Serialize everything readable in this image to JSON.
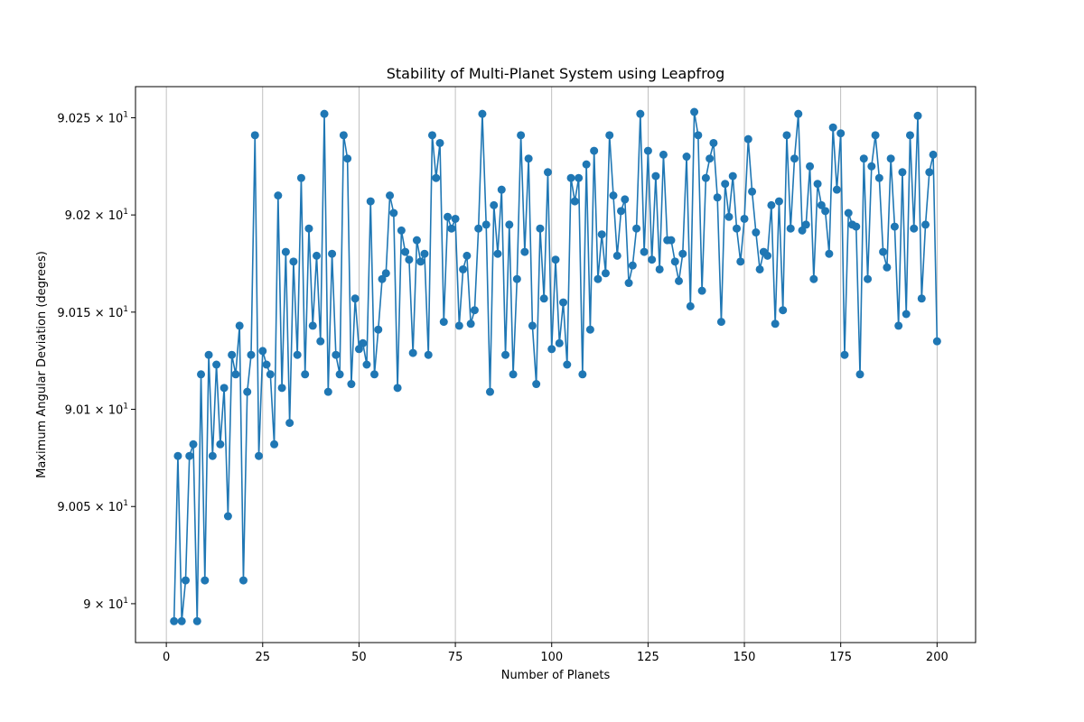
{
  "chart_data": {
    "type": "line",
    "title": "Stability of Multi-Planet System using Leapfrog",
    "xlabel": "Number of Planets",
    "ylabel": "Maximum Angular Deviation (degrees)",
    "xlim": [
      -8,
      210
    ],
    "ylim": [
      89.98,
      90.266
    ],
    "grid": "vertical",
    "color": "#1f77b4",
    "xticks": [
      {
        "value": 0,
        "label": "0"
      },
      {
        "value": 25,
        "label": "25"
      },
      {
        "value": 50,
        "label": "50"
      },
      {
        "value": 75,
        "label": "75"
      },
      {
        "value": 100,
        "label": "100"
      },
      {
        "value": 125,
        "label": "125"
      },
      {
        "value": 150,
        "label": "150"
      },
      {
        "value": 175,
        "label": "175"
      },
      {
        "value": 200,
        "label": "200"
      }
    ],
    "yticks": [
      {
        "value": 90.0,
        "mantissa": "9",
        "exponent": "1"
      },
      {
        "value": 90.05,
        "mantissa": "9.005",
        "exponent": "1"
      },
      {
        "value": 90.1,
        "mantissa": "9.01",
        "exponent": "1"
      },
      {
        "value": 90.15,
        "mantissa": "9.015",
        "exponent": "1"
      },
      {
        "value": 90.2,
        "mantissa": "9.02",
        "exponent": "1"
      },
      {
        "value": 90.25,
        "mantissa": "9.025",
        "exponent": "1"
      }
    ],
    "series": [
      {
        "x": [
          2,
          3,
          4,
          5,
          6,
          7,
          8,
          9,
          10,
          11,
          12,
          13,
          14,
          15,
          16,
          17,
          18,
          19,
          20,
          21,
          22,
          23,
          24,
          25,
          26,
          27,
          28,
          29,
          30,
          31,
          32,
          33,
          34,
          35,
          36,
          37,
          38,
          39,
          40,
          41,
          42,
          43,
          44,
          45,
          46,
          47,
          48,
          49,
          50,
          51,
          52,
          53,
          54,
          55,
          56,
          57,
          58,
          59,
          60,
          61,
          62,
          63,
          64,
          65,
          66,
          67,
          68,
          69,
          70,
          71,
          72,
          73,
          74,
          75,
          76,
          77,
          78,
          79,
          80,
          81,
          82,
          83,
          84,
          85,
          86,
          87,
          88,
          89,
          90,
          91,
          92,
          93,
          94,
          95,
          96,
          97,
          98,
          99,
          100,
          101,
          102,
          103,
          104,
          105,
          106,
          107,
          108,
          109,
          110,
          111,
          112,
          113,
          114,
          115,
          116,
          117,
          118,
          119,
          120,
          121,
          122,
          123,
          124,
          125,
          126,
          127,
          128,
          129,
          130,
          131,
          132,
          133,
          134,
          135,
          136,
          137,
          138,
          139,
          140,
          141,
          142,
          143,
          144,
          145,
          146,
          147,
          148,
          149,
          150,
          151,
          152,
          153,
          154,
          155,
          156,
          157,
          158,
          159,
          160,
          161,
          162,
          163,
          164,
          165,
          166,
          167,
          168,
          169,
          170,
          171,
          172,
          173,
          174,
          175,
          176,
          177,
          178,
          179,
          180,
          181,
          182,
          183,
          184,
          185,
          186,
          187,
          188,
          189,
          190,
          191,
          192,
          193,
          194,
          195,
          196,
          197,
          198,
          199,
          200
        ],
        "y": [
          89.991,
          90.076,
          89.991,
          90.012,
          90.076,
          90.082,
          89.991,
          90.118,
          90.012,
          90.128,
          90.076,
          90.123,
          90.082,
          90.111,
          90.045,
          90.128,
          90.118,
          90.143,
          90.012,
          90.109,
          90.128,
          90.241,
          90.076,
          90.13,
          90.123,
          90.118,
          90.082,
          90.21,
          90.111,
          90.181,
          90.093,
          90.176,
          90.128,
          90.219,
          90.118,
          90.193,
          90.143,
          90.179,
          90.135,
          90.252,
          90.109,
          90.18,
          90.128,
          90.118,
          90.241,
          90.229,
          90.113,
          90.157,
          90.131,
          90.134,
          90.123,
          90.207,
          90.118,
          90.141,
          90.167,
          90.17,
          90.21,
          90.201,
          90.111,
          90.192,
          90.181,
          90.177,
          90.129,
          90.187,
          90.176,
          90.18,
          90.128,
          90.241,
          90.219,
          90.237,
          90.145,
          90.199,
          90.193,
          90.198,
          90.143,
          90.172,
          90.179,
          90.144,
          90.151,
          90.193,
          90.252,
          90.195,
          90.109,
          90.205,
          90.18,
          90.213,
          90.128,
          90.195,
          90.118,
          90.167,
          90.241,
          90.181,
          90.229,
          90.143,
          90.113,
          90.193,
          90.157,
          90.222,
          90.131,
          90.177,
          90.134,
          90.155,
          90.123,
          90.219,
          90.207,
          90.219,
          90.118,
          90.226,
          90.141,
          90.233,
          90.167,
          90.19,
          90.17,
          90.241,
          90.21,
          90.179,
          90.202,
          90.208,
          90.165,
          90.174,
          90.193,
          90.252,
          90.181,
          90.233,
          90.177,
          90.22,
          90.172,
          90.231,
          90.187,
          90.187,
          90.176,
          90.166,
          90.18,
          90.23,
          90.153,
          90.253,
          90.241,
          90.161,
          90.219,
          90.229,
          90.237,
          90.209,
          90.145,
          90.216,
          90.199,
          90.22,
          90.193,
          90.176,
          90.198,
          90.239,
          90.212,
          90.191,
          90.172,
          90.181,
          90.179,
          90.205,
          90.144,
          90.207,
          90.151,
          90.241,
          90.193,
          90.229,
          90.252,
          90.192,
          90.195,
          90.225,
          90.167,
          90.216,
          90.205,
          90.202,
          90.18,
          90.245,
          90.213,
          90.242,
          90.128,
          90.201,
          90.195,
          90.194,
          90.118,
          90.229,
          90.167,
          90.225,
          90.241,
          90.219,
          90.181,
          90.173,
          90.229,
          90.194,
          90.143,
          90.222,
          90.149,
          90.241,
          90.193,
          90.251,
          90.157,
          90.195,
          90.222,
          90.231,
          90.135
        ]
      }
    ]
  }
}
